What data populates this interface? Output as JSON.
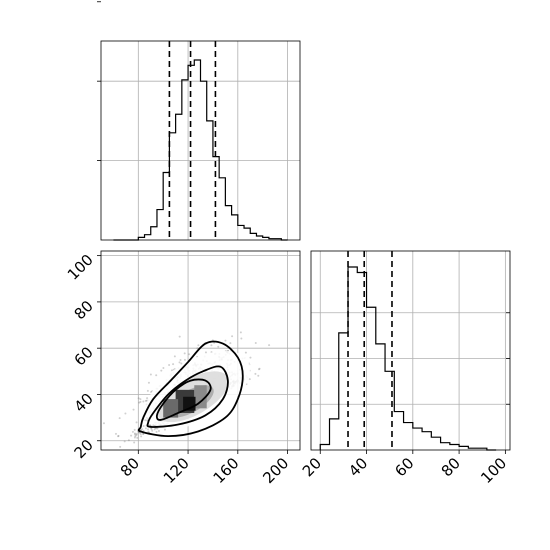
{
  "chart_data": {
    "type": "corner",
    "x_param": {
      "range": [
        50,
        210
      ],
      "ticks": [
        80,
        120,
        160,
        200
      ],
      "quantiles": [
        105,
        122,
        142
      ],
      "hist_edges": [
        60,
        65,
        70,
        75,
        80,
        85,
        90,
        95,
        100,
        105,
        110,
        115,
        120,
        125,
        130,
        135,
        140,
        145,
        150,
        155,
        160,
        165,
        170,
        175,
        180,
        185,
        190,
        195,
        200
      ],
      "hist_counts": [
        0,
        0,
        0,
        0,
        2,
        4,
        10,
        23,
        51,
        81,
        95,
        121,
        132,
        136,
        120,
        90,
        63,
        47,
        26,
        19,
        11,
        9,
        5,
        3,
        2,
        1,
        1,
        0
      ]
    },
    "y_param": {
      "range": [
        16,
        102
      ],
      "ticks": [
        20,
        40,
        60,
        80,
        100
      ],
      "hist_ticks": [
        20,
        40,
        60,
        80,
        100
      ],
      "quantiles": [
        32,
        39,
        51
      ],
      "hist_edges": [
        20,
        24,
        28,
        32,
        36,
        40,
        44,
        48,
        52,
        56,
        60,
        64,
        68,
        72,
        76,
        80,
        84,
        88,
        92,
        96
      ],
      "hist_counts": [
        3,
        17,
        64,
        100,
        97,
        78,
        58,
        43,
        21,
        15,
        12,
        10,
        7,
        4,
        3,
        2,
        1,
        1,
        0
      ]
    },
    "joint": {
      "center": [
        122,
        36
      ],
      "scatter_count": 1200,
      "density_blocks": [
        {
          "x": [
            110,
            125
          ],
          "y": [
            32,
            42
          ],
          "shade": "#3a3a3a"
        },
        {
          "x": [
            100,
            112
          ],
          "y": [
            30,
            38
          ],
          "shade": "#6a6a6a"
        },
        {
          "x": [
            125,
            135
          ],
          "y": [
            34,
            44
          ],
          "shade": "#8a8a8a"
        },
        {
          "x": [
            116,
            126
          ],
          "y": [
            33,
            39
          ],
          "shade": "#111111"
        }
      ],
      "contours": [
        [
          [
            98,
            29
          ],
          [
            112,
            32
          ],
          [
            128,
            36
          ],
          [
            138,
            42
          ],
          [
            134,
            46
          ],
          [
            122,
            46
          ],
          [
            110,
            42
          ],
          [
            100,
            36
          ],
          [
            95,
            31
          ]
        ],
        [
          [
            90,
            26
          ],
          [
            112,
            27
          ],
          [
            134,
            31
          ],
          [
            148,
            38
          ],
          [
            152,
            46
          ],
          [
            146,
            52
          ],
          [
            132,
            50
          ],
          [
            118,
            46
          ],
          [
            104,
            40
          ],
          [
            92,
            32
          ],
          [
            88,
            28
          ]
        ],
        [
          [
            82,
            24
          ],
          [
            104,
            22
          ],
          [
            128,
            24
          ],
          [
            150,
            30
          ],
          [
            160,
            38
          ],
          [
            164,
            48
          ],
          [
            160,
            56
          ],
          [
            148,
            62
          ],
          [
            134,
            62
          ],
          [
            120,
            54
          ],
          [
            106,
            46
          ],
          [
            92,
            38
          ],
          [
            84,
            30
          ],
          [
            82,
            26
          ]
        ]
      ]
    }
  }
}
